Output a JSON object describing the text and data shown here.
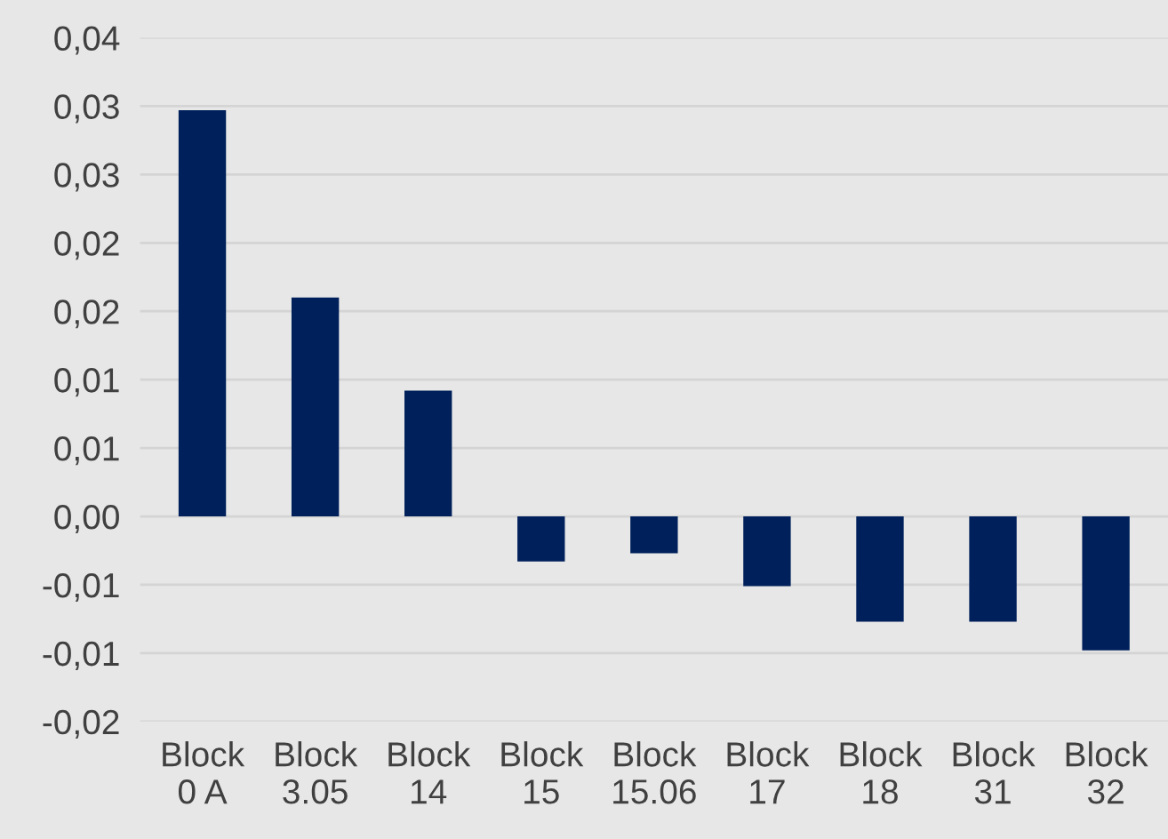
{
  "chart_data": {
    "type": "bar",
    "categories": [
      "Block 0 A",
      "Block 3.05",
      "Block 14",
      "Block 15",
      "Block 15.06",
      "Block 17",
      "Block 18",
      "Block 31",
      "Block 32"
    ],
    "values": [
      0.0297,
      0.016,
      0.0092,
      -0.0033,
      -0.0027,
      -0.0051,
      -0.0077,
      -0.0077,
      -0.0098
    ],
    "color": "#00205b",
    "ylim": [
      -0.015,
      0.035
    ],
    "yticks": [
      {
        "value": -0.015,
        "label": "-0,02"
      },
      {
        "value": -0.01,
        "label": "-0,01"
      },
      {
        "value": -0.005,
        "label": "-0,01"
      },
      {
        "value": 0,
        "label": "0,00"
      },
      {
        "value": 0.005,
        "label": "0,01"
      },
      {
        "value": 0.01,
        "label": "0,01"
      },
      {
        "value": 0.015,
        "label": "0,02"
      },
      {
        "value": 0.02,
        "label": "0,02"
      },
      {
        "value": 0.025,
        "label": "0,03"
      },
      {
        "value": 0.03,
        "label": "0,03"
      },
      {
        "value": 0.035,
        "label": "0,04"
      }
    ],
    "grid": "y"
  }
}
